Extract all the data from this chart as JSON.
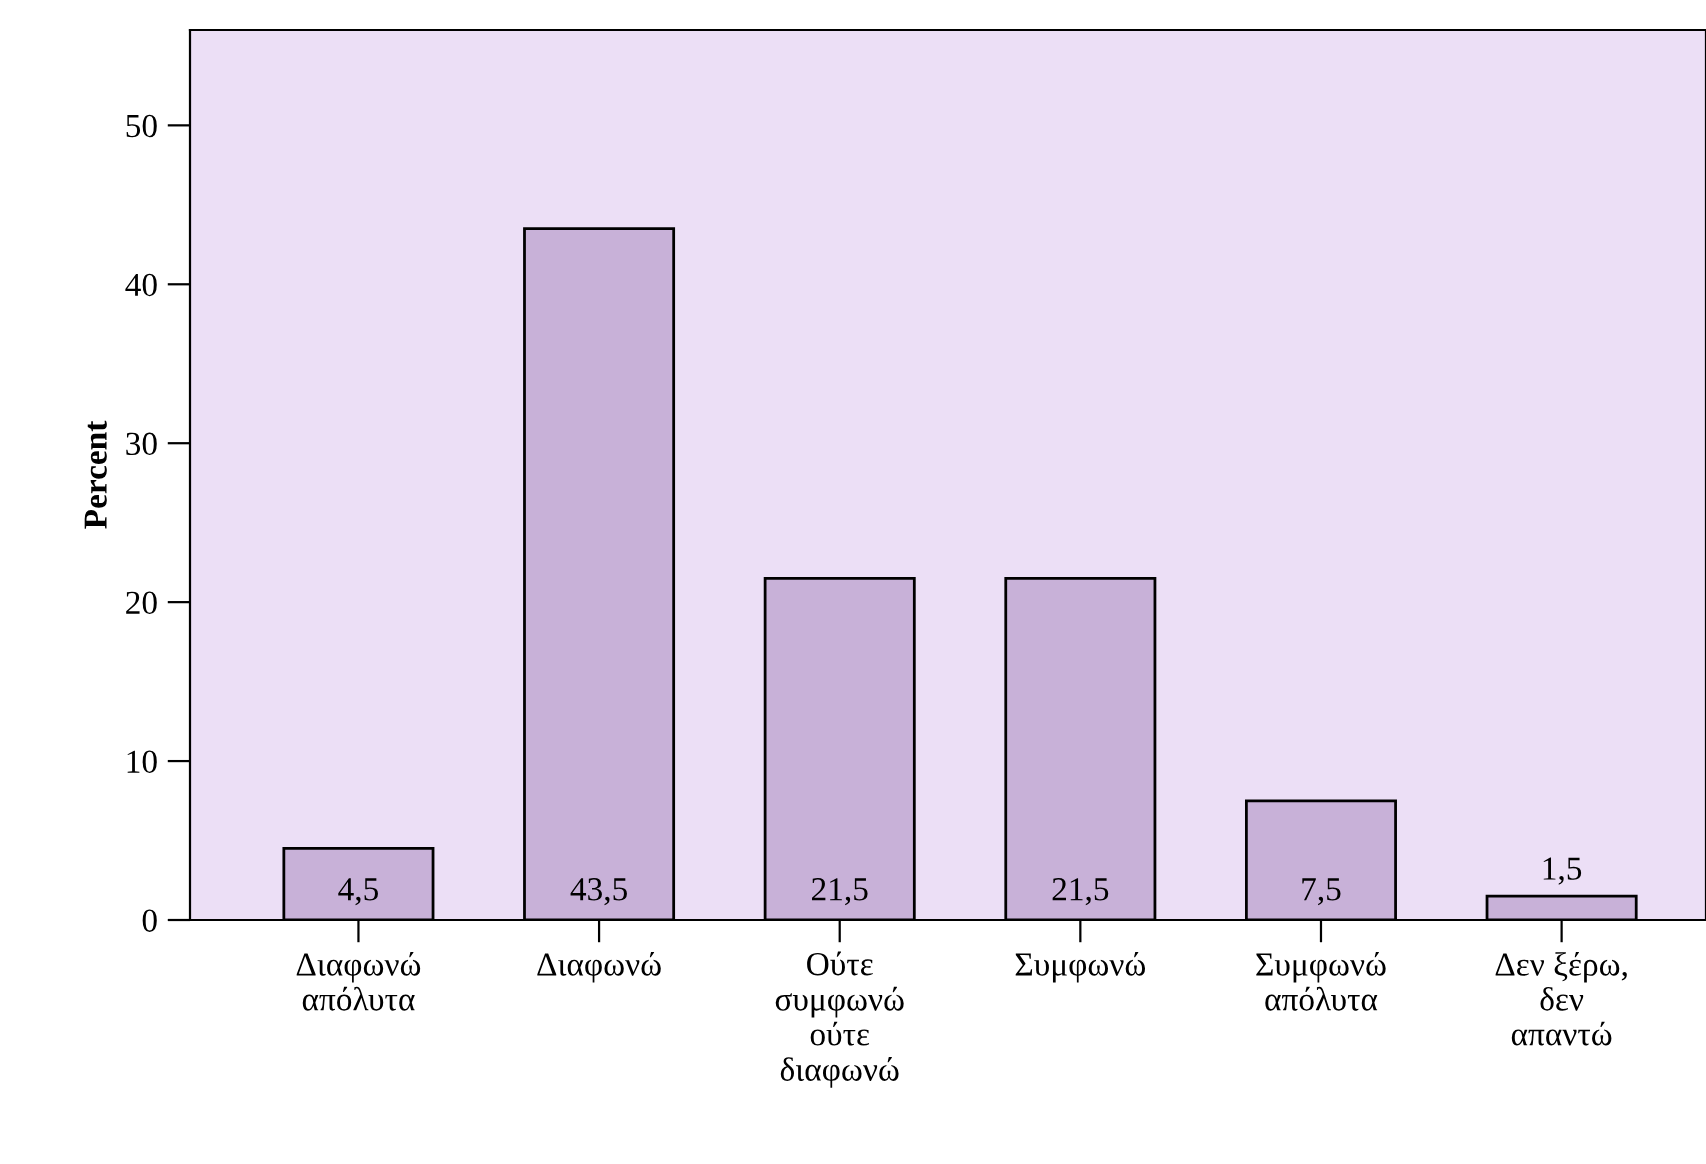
{
  "chart_data": {
    "type": "bar",
    "ylabel": "Percent",
    "categories": [
      "Διαφωνώ\nαπόλυτα",
      "Διαφωνώ",
      "Ούτε\nσυμφωνώ\nούτε\nδιαφωνώ",
      "Συμφωνώ",
      "Συμφωνώ\nαπόλυτα",
      "Δεν ξέρω,\nδεν\nαπαντώ"
    ],
    "values": [
      4.5,
      43.5,
      21.5,
      21.5,
      7.5,
      1.5
    ],
    "value_labels": [
      "4,5",
      "43,5",
      "21,5",
      "21,5",
      "7,5",
      "1,5"
    ],
    "color": "#c8b1d8",
    "ylim": [
      0,
      56
    ],
    "yticks": [
      0,
      10,
      20,
      30,
      40,
      50
    ],
    "grid": false
  }
}
